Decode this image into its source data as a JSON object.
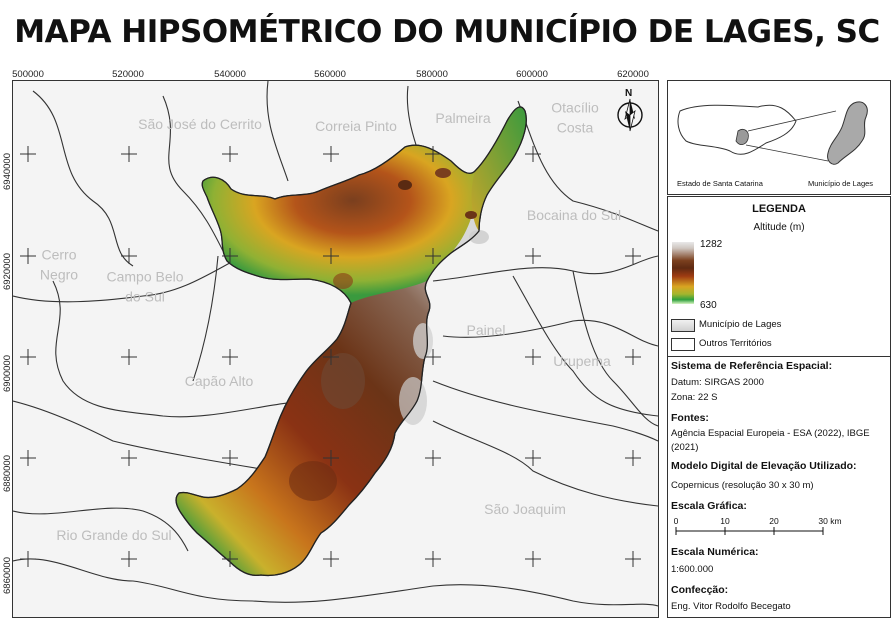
{
  "title": "MAPA HIPSOMÉTRICO DO MUNICÍPIO DE LAGES, SC",
  "grid": {
    "x_ticks": [
      "500000",
      "520000",
      "540000",
      "560000",
      "580000",
      "600000",
      "620000"
    ],
    "y_ticks": [
      "6940000",
      "6920000",
      "6900000",
      "6880000",
      "6860000"
    ]
  },
  "map": {
    "territories": [
      {
        "name": "São José do Cerrito"
      },
      {
        "name": "Correia Pinto"
      },
      {
        "name": "Palmeira"
      },
      {
        "name": "Otacílio Costa"
      },
      {
        "name": "Bocaina do Sul"
      },
      {
        "name": "Cerro Negro"
      },
      {
        "name": "Campo Belo do Sul"
      },
      {
        "name": "Painel"
      },
      {
        "name": "Urupema"
      },
      {
        "name": "Capão Alto"
      },
      {
        "name": "São Joaquim"
      },
      {
        "name": "Rio Grande do Sul"
      }
    ],
    "north_arrow_label": "N",
    "colors": {
      "background": "#f4f4f4",
      "boundaries": "#333333",
      "lowland": "#3a9a3e",
      "upland": "#6b3417",
      "peak": "#d9d9d9"
    }
  },
  "locator": {
    "state_label": "Estado de Santa Catarina",
    "municipality_label": "Município de Lages"
  },
  "legend": {
    "title": "LEGENDA",
    "altitude_label": "Altitude (m)",
    "max": "1282",
    "min": "630",
    "items": [
      {
        "label": "Município de Lages",
        "color": "#dcdcdc"
      },
      {
        "label": "Outros Territórios",
        "color": "#ffffff"
      }
    ],
    "srs": {
      "heading": "Sistema de Referência Espacial:",
      "lines": [
        "Datum: SIRGAS 2000",
        "Zona: 22 S"
      ]
    },
    "sources": {
      "heading": "Fontes:",
      "text": "Agência Espacial Europeia - ESA (2022), IBGE (2021)"
    },
    "dem": {
      "heading": "Modelo Digital de Elevação Utilizado:",
      "text": "Copernicus (resolução 30 x 30 m)"
    },
    "scale_bar": {
      "heading": "Escala Gráfica:",
      "labels": [
        "0",
        "10",
        "20",
        "30 km"
      ]
    },
    "numeric_scale": {
      "heading": "Escala Numérica:",
      "text": "1:600.000"
    },
    "credits": {
      "heading": "Confecção:",
      "text": "Eng. Vitor Rodolfo Becegato"
    }
  }
}
